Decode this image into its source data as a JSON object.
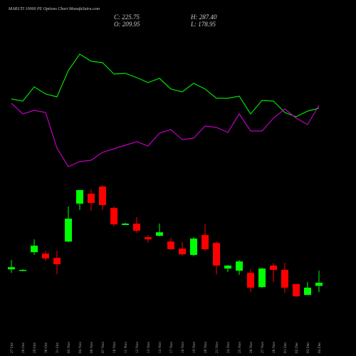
{
  "chart_data": {
    "type": "candlestick",
    "title": "MARUTI 10000 PE Options Chart MunafaSutra.com",
    "summary": [
      "C: 225.75",
      "H: 287.40",
      "O: 209.95",
      "L: 178.95"
    ],
    "categories": [
      "27 Oct",
      "28 Oct",
      "29 Oct",
      "30 Oct",
      "31 Oct",
      "03 Nov",
      "04 Nov",
      "06 Nov",
      "07 Nov",
      "10 Nov",
      "11 Nov",
      "12 Nov",
      "13 Nov",
      "14 Nov",
      "17 Nov",
      "18 Nov",
      "19 Nov",
      "20 Nov",
      "21 Nov",
      "24 Nov",
      "25 Nov",
      "26 Nov",
      "27 Nov",
      "28 Nov",
      "01 Dec",
      "02 Dec",
      "03 Dec",
      "04 Dec"
    ],
    "open": [
      294,
      287,
      381,
      374,
      352,
      435,
      627,
      678,
      714,
      605,
      519,
      526,
      457,
      464,
      435,
      399,
      367,
      468,
      428,
      298,
      287,
      276,
      204,
      313,
      291,
      219,
      164,
      209.95
    ],
    "high": [
      341,
      294,
      446,
      388,
      388,
      613,
      696,
      699,
      721,
      613,
      530,
      558,
      468,
      526,
      454,
      432,
      457,
      522,
      435,
      316,
      341,
      294,
      302,
      327,
      327,
      222,
      229,
      287.4
    ],
    "low": [
      276,
      284,
      367,
      338,
      269,
      432,
      595,
      591,
      595,
      511,
      519,
      479,
      428,
      461,
      392,
      363,
      360,
      388,
      269,
      280,
      266,
      179,
      201,
      229,
      175,
      154,
      164,
      178.95
    ],
    "close": [
      305,
      291,
      414,
      349,
      320,
      551,
      696,
      631,
      620,
      522,
      526,
      490,
      446,
      482,
      396,
      370,
      450,
      396,
      313,
      313,
      334,
      201,
      298,
      291,
      201,
      157,
      201,
      225.75
    ],
    "up_color": "#00ff00",
    "down_color": "#ff0000",
    "ylim": [
      100,
      750
    ],
    "lines": [
      {
        "color": "#00e000",
        "values": [
          361,
          358,
          378,
          368,
          364,
          401,
          424,
          414,
          412,
          396,
          397,
          391,
          384,
          390,
          375,
          371,
          383,
          375,
          362,
          362,
          365,
          340,
          359,
          358,
          342,
          336,
          344,
          348
        ]
      },
      {
        "color": "#c000c0",
        "values": [
          355,
          340,
          345,
          342,
          292,
          266,
          273,
          275,
          286,
          291,
          296,
          301,
          295,
          313,
          318,
          304,
          306,
          323,
          321,
          314,
          340,
          316,
          316,
          334,
          347,
          334,
          325,
          352
        ]
      }
    ],
    "y2lim": [
      0,
      500
    ]
  }
}
